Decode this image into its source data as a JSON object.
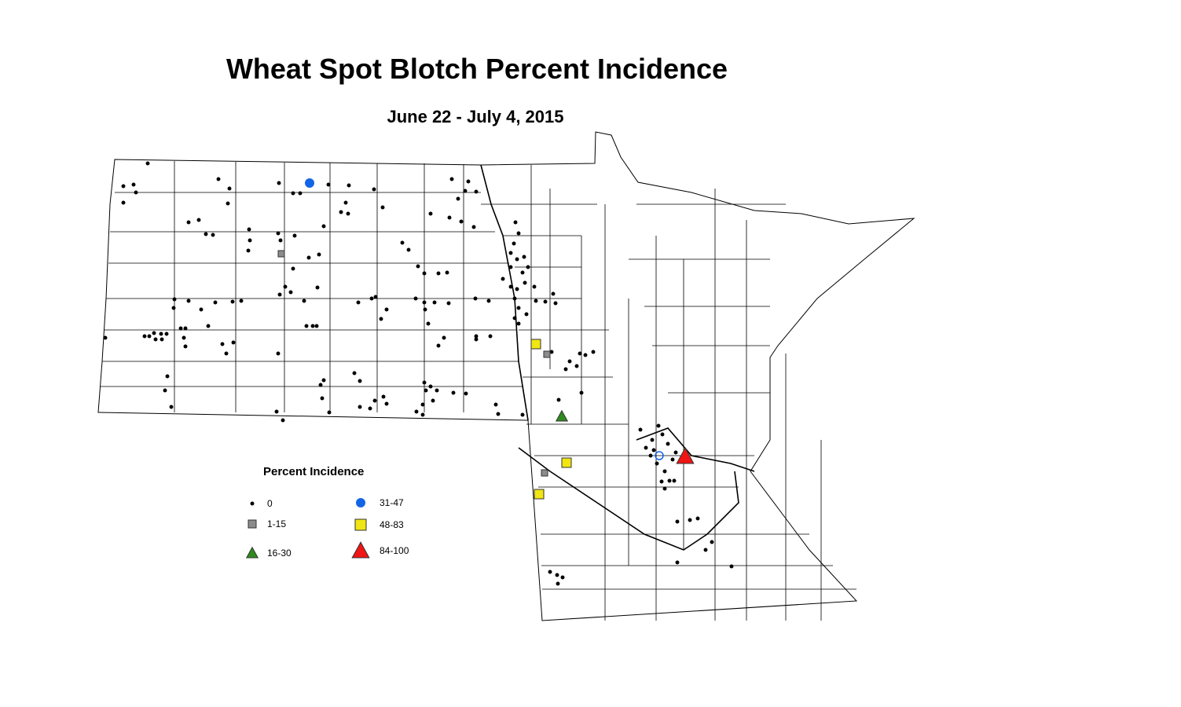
{
  "title": "Wheat Spot Blotch Percent Incidence",
  "subtitle": "June 22 - July 4, 2015",
  "legend": {
    "title": "Percent Incidence",
    "items": [
      {
        "label": "0",
        "shape": "dot",
        "color": "#000000"
      },
      {
        "label": "1-15",
        "shape": "square",
        "color": "#8c8c8c"
      },
      {
        "label": "16-30",
        "shape": "triangle",
        "color": "#2e8b1e"
      },
      {
        "label": "31-47",
        "shape": "circle",
        "color": "#1464e6"
      },
      {
        "label": "48-83",
        "shape": "square",
        "color": "#f0e614"
      },
      {
        "label": "84-100",
        "shape": "triangle",
        "color": "#f01414"
      }
    ]
  }
}
